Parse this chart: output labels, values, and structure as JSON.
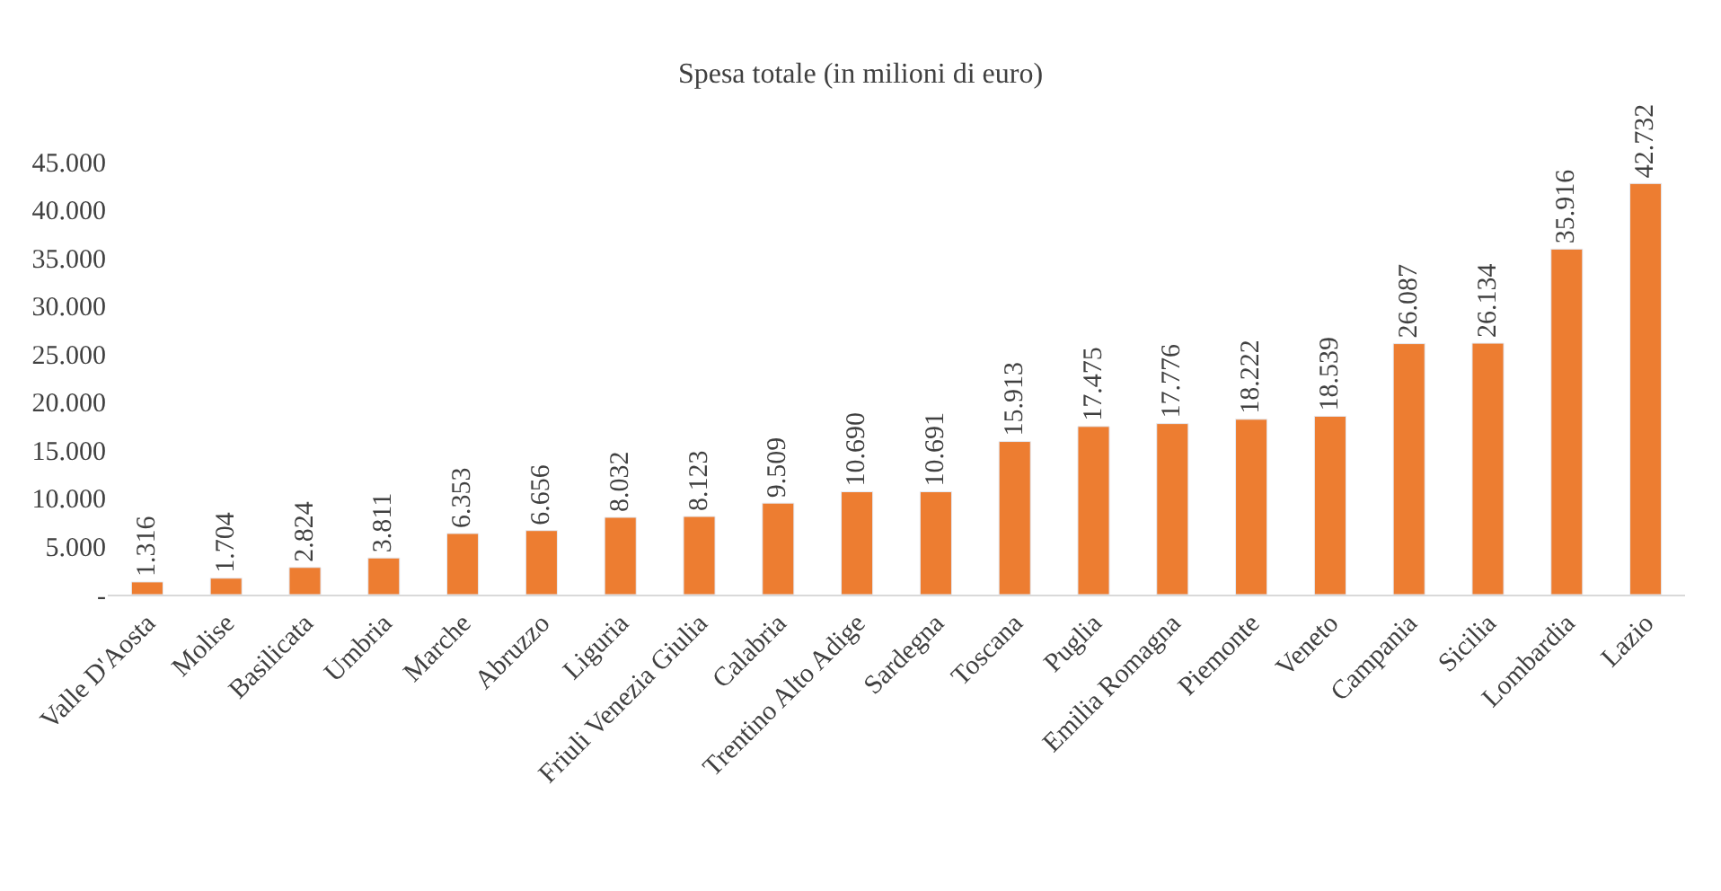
{
  "chart_data": {
    "type": "bar",
    "title": "Spesa totale (in milioni di euro)",
    "categories": [
      "Valle D'Aosta",
      "Molise",
      "Basilicata",
      "Umbria",
      "Marche",
      "Abruzzo",
      "Liguria",
      "Friuli Venezia Giulia",
      "Calabria",
      "Trentino Alto Adige",
      "Sardegna",
      "Toscana",
      "Puglia",
      "Emilia Romagna",
      "Piemonte",
      "Veneto",
      "Campania",
      "Sicilia",
      "Lombardia",
      "Lazio"
    ],
    "values": [
      1316,
      1704,
      2824,
      3811,
      6353,
      6656,
      8032,
      8123,
      9509,
      10690,
      10691,
      15913,
      17475,
      17776,
      18222,
      18539,
      26087,
      26134,
      35916,
      42732
    ],
    "value_labels": [
      "1.316",
      "1.704",
      "2.824",
      "3.811",
      "6.353",
      "6.656",
      "8.032",
      "8.123",
      "9.509",
      "10.690",
      "10.691",
      "15.913",
      "17.475",
      "17.776",
      "18.222",
      "18.539",
      "26.087",
      "26.134",
      "35.916",
      "42.732"
    ],
    "color": "#ed7d31",
    "ylim": [
      0,
      45000
    ],
    "yticks": [
      {
        "value": 0,
        "label": "-"
      },
      {
        "value": 5000,
        "label": "5.000"
      },
      {
        "value": 10000,
        "label": "10.000"
      },
      {
        "value": 15000,
        "label": "15.000"
      },
      {
        "value": 20000,
        "label": "20.000"
      },
      {
        "value": 25000,
        "label": "25.000"
      },
      {
        "value": 30000,
        "label": "30.000"
      },
      {
        "value": 35000,
        "label": "35.000"
      },
      {
        "value": 40000,
        "label": "40.000"
      },
      {
        "value": 45000,
        "label": "45.000"
      }
    ]
  }
}
